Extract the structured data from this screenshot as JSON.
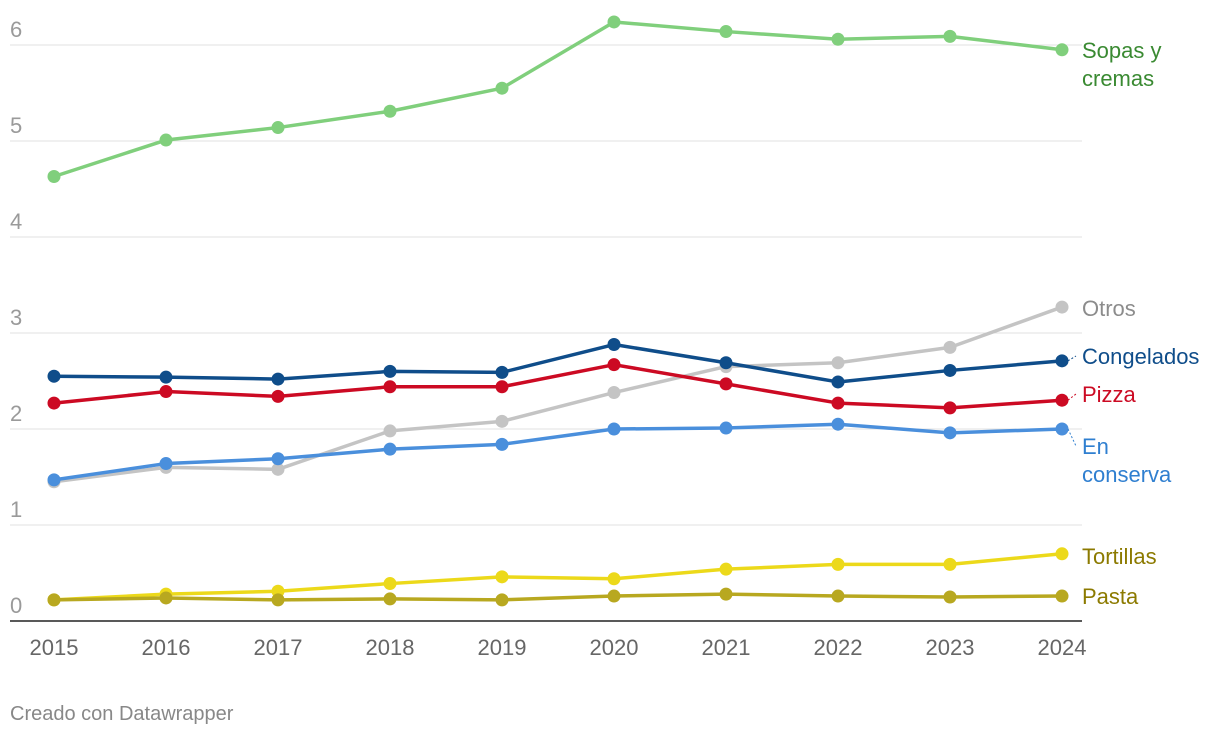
{
  "chart_data": {
    "type": "line",
    "x": [
      "2015",
      "2016",
      "2017",
      "2018",
      "2019",
      "2020",
      "2021",
      "2022",
      "2023",
      "2024"
    ],
    "ylim": [
      0,
      6
    ],
    "yticks": [
      "0",
      "1",
      "2",
      "3",
      "4",
      "5",
      "6"
    ],
    "grid": true,
    "series": [
      {
        "name": "Sopas y cremas",
        "label_lines": [
          "Sopas y",
          "cremas"
        ],
        "line_color": "#80cf7c",
        "label_color": "#3a8a32",
        "values": [
          4.63,
          5.01,
          5.14,
          5.31,
          5.55,
          6.24,
          6.14,
          6.06,
          6.09,
          5.95
        ]
      },
      {
        "name": "Otros",
        "label_lines": [
          "Otros"
        ],
        "line_color": "#c4c4c4",
        "label_color": "#8c8c8c",
        "values": [
          1.45,
          1.6,
          1.58,
          1.98,
          2.08,
          2.38,
          2.65,
          2.69,
          2.85,
          3.27
        ]
      },
      {
        "name": "Congelados",
        "label_lines": [
          "Congelados"
        ],
        "line_color": "#0f4d8a",
        "label_color": "#0f4d8a",
        "values": [
          2.55,
          2.54,
          2.52,
          2.6,
          2.59,
          2.88,
          2.69,
          2.49,
          2.61,
          2.71
        ]
      },
      {
        "name": "Pizza",
        "label_lines": [
          "Pizza"
        ],
        "line_color": "#cc0a23",
        "label_color": "#cc0a23",
        "values": [
          2.27,
          2.39,
          2.34,
          2.44,
          2.44,
          2.67,
          2.47,
          2.27,
          2.22,
          2.3
        ]
      },
      {
        "name": "En conserva",
        "label_lines": [
          "En",
          "conserva"
        ],
        "line_color": "#4a8fdc",
        "label_color": "#2f7fd0",
        "values": [
          1.47,
          1.64,
          1.69,
          1.79,
          1.84,
          2.0,
          2.01,
          2.05,
          1.96,
          2.0
        ]
      },
      {
        "name": "Tortillas",
        "label_lines": [
          "Tortillas"
        ],
        "line_color": "#ecd91a",
        "label_color": "#8c7a00",
        "values": [
          0.22,
          0.28,
          0.31,
          0.39,
          0.46,
          0.44,
          0.54,
          0.59,
          0.59,
          0.7
        ]
      },
      {
        "name": "Pasta",
        "label_lines": [
          "Pasta"
        ],
        "line_color": "#b8a820",
        "label_color": "#8c7a00",
        "values": [
          0.22,
          0.24,
          0.22,
          0.23,
          0.22,
          0.26,
          0.28,
          0.26,
          0.25,
          0.26
        ]
      }
    ]
  },
  "footer": {
    "credit": "Creado con Datawrapper"
  }
}
